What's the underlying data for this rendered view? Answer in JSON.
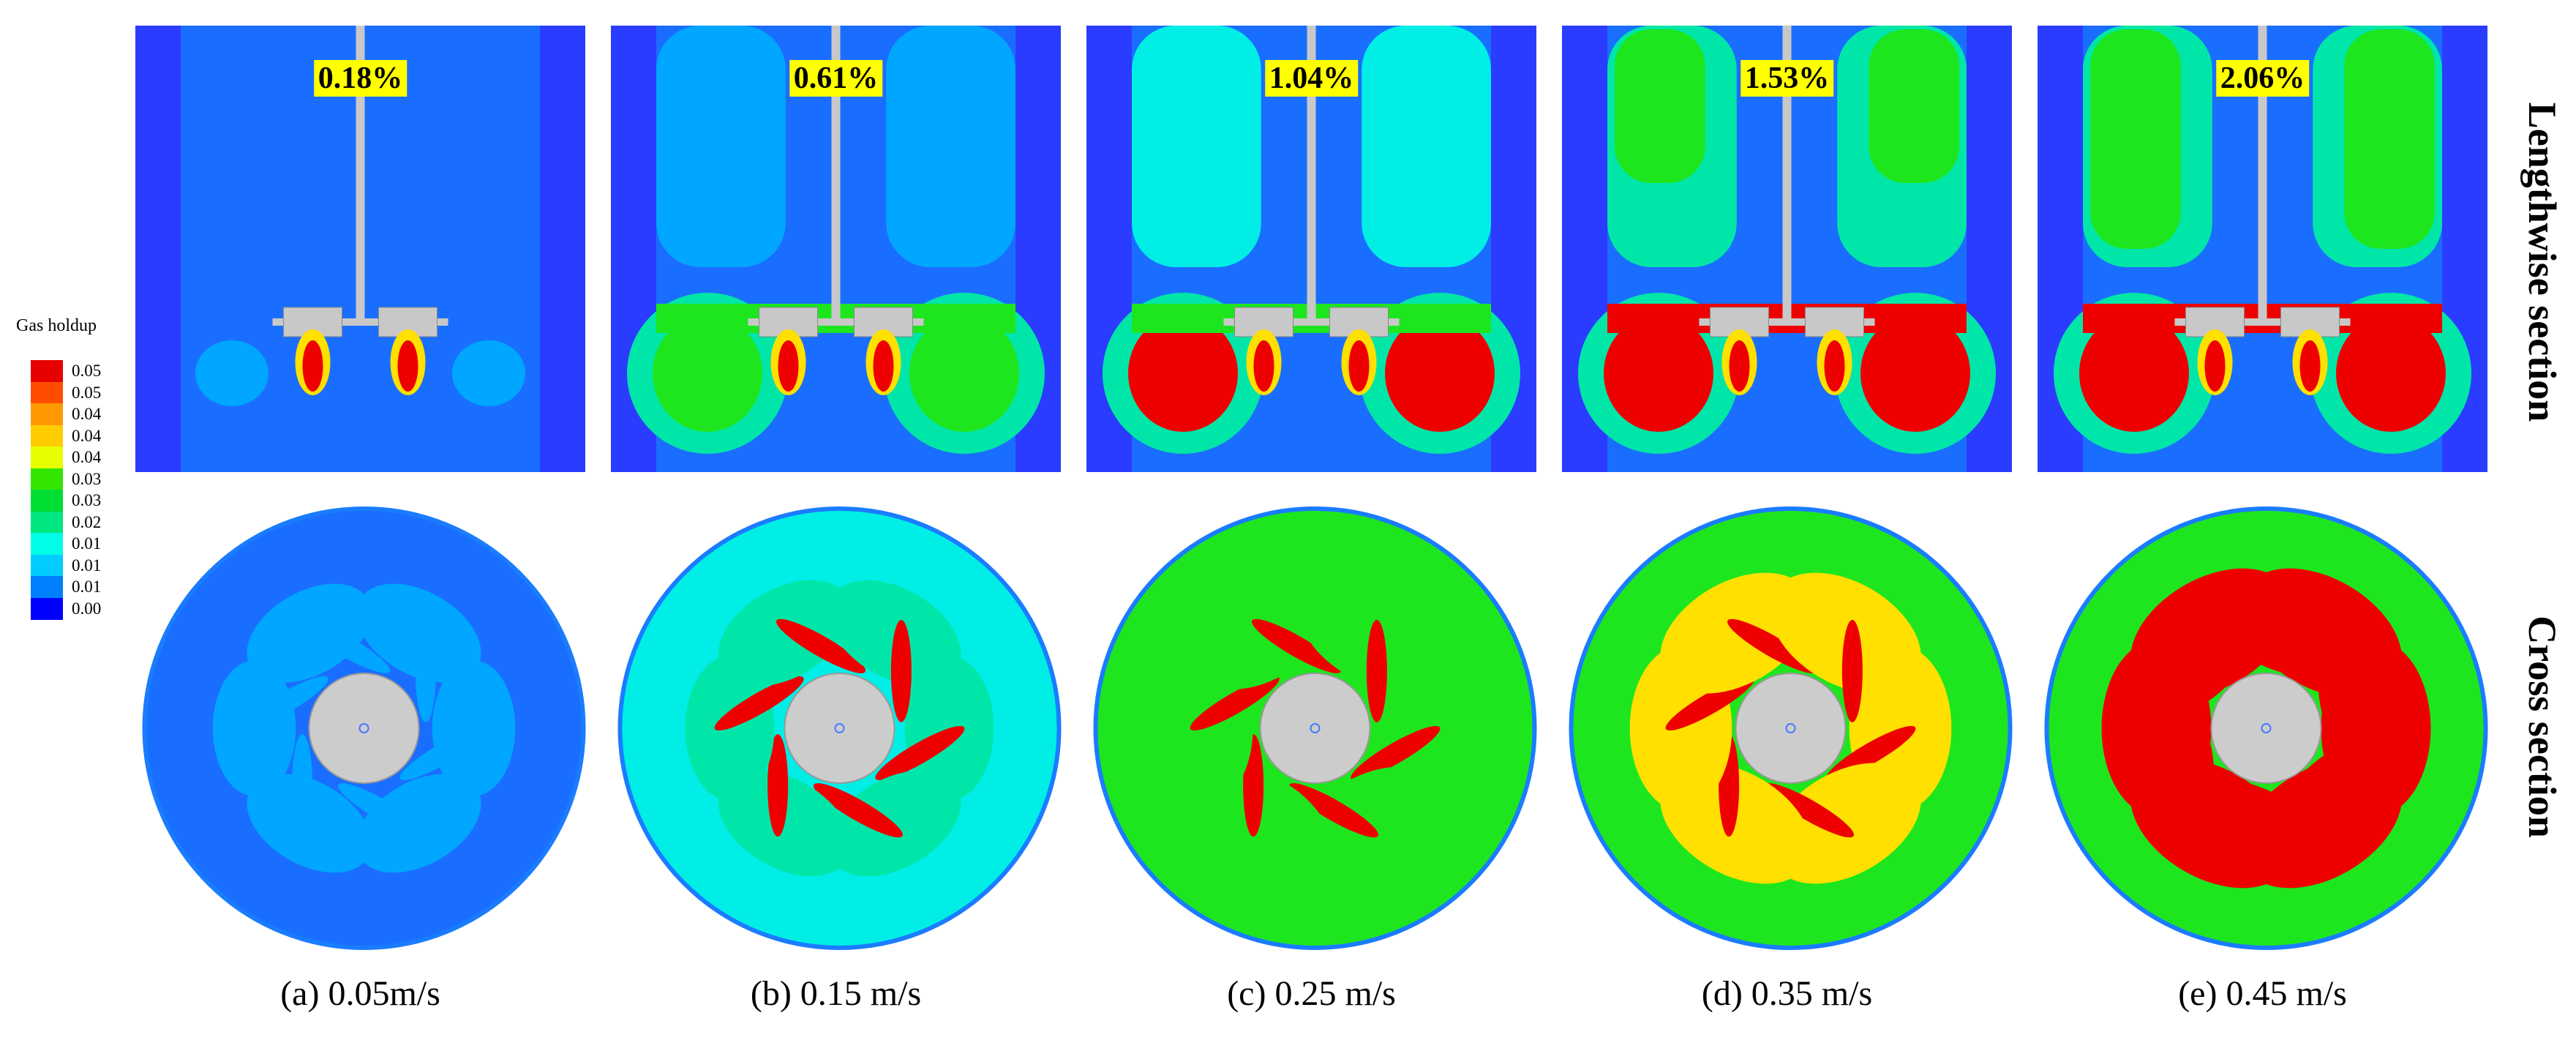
{
  "legend": {
    "title": "Gas holdup",
    "items": [
      {
        "label": "0.05",
        "color": "#e60000"
      },
      {
        "label": "0.05",
        "color": "#ff4d00"
      },
      {
        "label": "0.04",
        "color": "#ff9900"
      },
      {
        "label": "0.04",
        "color": "#ffcc00"
      },
      {
        "label": "0.04",
        "color": "#e6ff00"
      },
      {
        "label": "0.03",
        "color": "#33e600"
      },
      {
        "label": "0.03",
        "color": "#00dd33"
      },
      {
        "label": "0.02",
        "color": "#00e680"
      },
      {
        "label": "0.01",
        "color": "#00ffe6"
      },
      {
        "label": "0.01",
        "color": "#00ccff"
      },
      {
        "label": "0.01",
        "color": "#0080ff"
      },
      {
        "label": "0.00",
        "color": "#0000ff"
      }
    ]
  },
  "side_labels": {
    "top": "Lengthwise section",
    "bottom": "Cross section"
  },
  "panels": [
    {
      "id": "a",
      "holdup": "0.18%",
      "caption": "(a) 0.05m/s",
      "level": 0.18
    },
    {
      "id": "b",
      "holdup": "0.61%",
      "caption": "(b) 0.15 m/s",
      "level": 0.61
    },
    {
      "id": "c",
      "holdup": "1.04%",
      "caption": "(c) 0.25 m/s",
      "level": 1.04
    },
    {
      "id": "d",
      "holdup": "1.53%",
      "caption": "(d) 0.35 m/s",
      "level": 1.53
    },
    {
      "id": "e",
      "holdup": "2.06%",
      "caption": "(e) 0.45 m/s",
      "level": 2.06
    }
  ],
  "colors": {
    "wall": "#2a3cff",
    "blue": "#1a6eff",
    "lightblue": "#00a6ff",
    "cyan": "#00eee6",
    "aqua": "#00e6a8",
    "green": "#1ee61e",
    "yellowgreen": "#c8f000",
    "yellow": "#ffe000",
    "orange": "#ff8800",
    "red": "#ee0000",
    "shaft": "#c8c8c8",
    "hub": "#cccccc"
  }
}
